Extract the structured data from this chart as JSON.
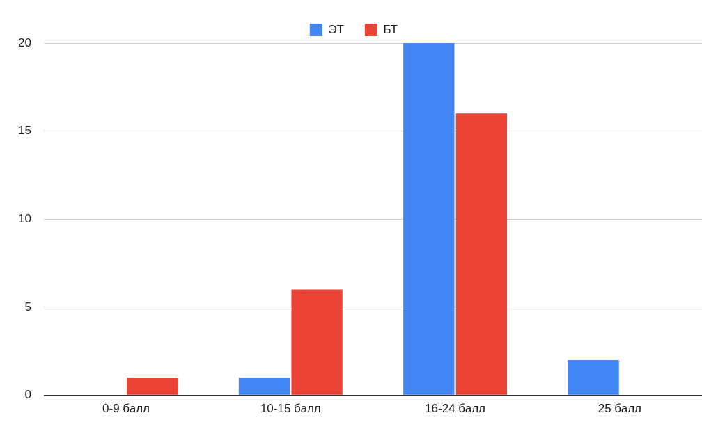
{
  "chart_data": {
    "type": "bar",
    "categories": [
      "0-9 балл",
      "10-15 балл",
      "16-24 балл",
      "25 балл"
    ],
    "series": [
      {
        "name": "ЭТ",
        "color": "#4285f4",
        "values": [
          0,
          1,
          20,
          2
        ]
      },
      {
        "name": "БТ",
        "color": "#ea4335",
        "values": [
          1,
          6,
          16,
          0
        ]
      }
    ],
    "ylim": [
      0,
      20
    ],
    "yticks": [
      0,
      5,
      10,
      15,
      20
    ],
    "grid": "y",
    "legend": "top"
  }
}
